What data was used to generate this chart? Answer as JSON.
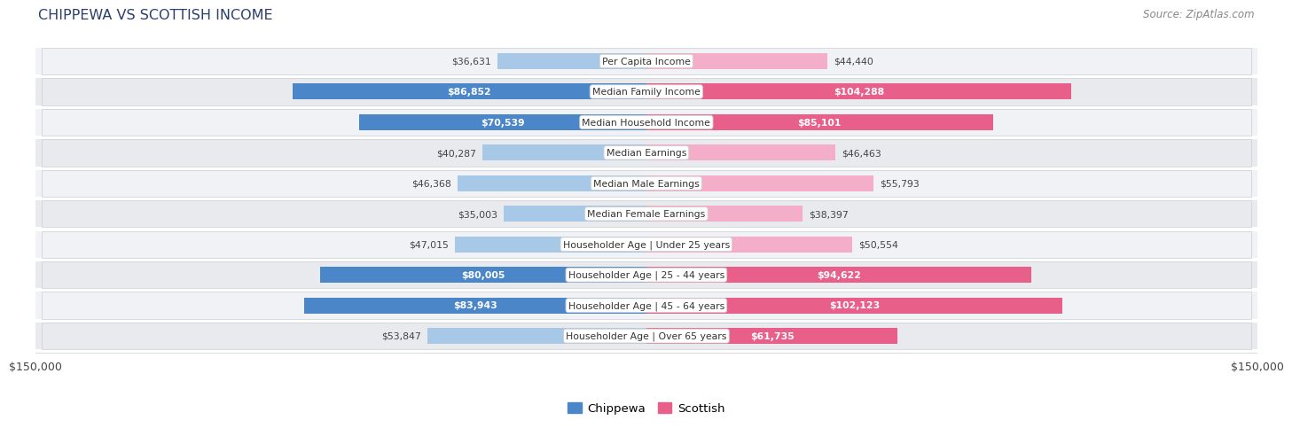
{
  "title": "CHIPPEWA VS SCOTTISH INCOME",
  "source": "Source: ZipAtlas.com",
  "categories": [
    "Per Capita Income",
    "Median Family Income",
    "Median Household Income",
    "Median Earnings",
    "Median Male Earnings",
    "Median Female Earnings",
    "Householder Age | Under 25 years",
    "Householder Age | 25 - 44 years",
    "Householder Age | 45 - 64 years",
    "Householder Age | Over 65 years"
  ],
  "chippewa_values": [
    36631,
    86852,
    70539,
    40287,
    46368,
    35003,
    47015,
    80005,
    83943,
    53847
  ],
  "scottish_values": [
    44440,
    104288,
    85101,
    46463,
    55793,
    38397,
    50554,
    94622,
    102123,
    61735
  ],
  "chippewa_labels": [
    "$36,631",
    "$86,852",
    "$70,539",
    "$40,287",
    "$46,368",
    "$35,003",
    "$47,015",
    "$80,005",
    "$83,943",
    "$53,847"
  ],
  "scottish_labels": [
    "$44,440",
    "$104,288",
    "$85,101",
    "$46,463",
    "$55,793",
    "$38,397",
    "$50,554",
    "$94,622",
    "$102,123",
    "$61,735"
  ],
  "chippewa_color_dark": "#4a86c8",
  "chippewa_color_light": "#a8c8e8",
  "scottish_color_dark": "#e8608a",
  "scottish_color_light": "#f4aec8",
  "dark_threshold": 60000,
  "max_value": 150000,
  "background_color": "#ffffff",
  "row_colors": [
    "#f0f2f5",
    "#e8eaed"
  ],
  "bar_height": 0.52,
  "legend_labels": [
    "Chippewa",
    "Scottish"
  ],
  "x_axis_label_left": "$150,000",
  "x_axis_label_right": "$150,000",
  "title_color": "#2c3e6b",
  "source_color": "#888888",
  "label_inside_color": "#ffffff",
  "label_outside_color": "#444444",
  "cat_label_color": "#333333",
  "row_edge_color": "#d0d3d8"
}
